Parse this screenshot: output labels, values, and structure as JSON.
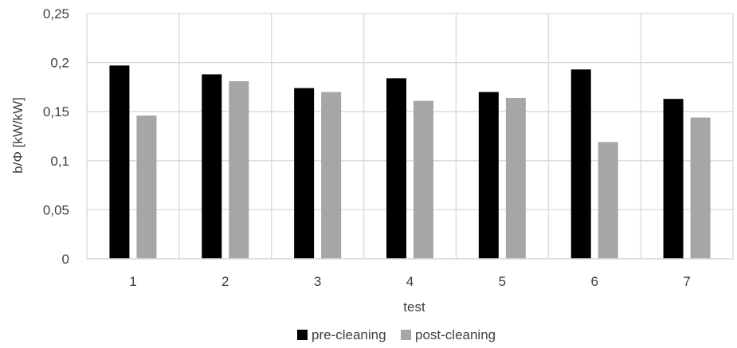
{
  "chart_data": {
    "type": "bar",
    "title": "",
    "xlabel": "test",
    "ylabel": "b/Φ [kW/kW]",
    "categories": [
      "1",
      "2",
      "3",
      "4",
      "5",
      "6",
      "7"
    ],
    "ylim": [
      0,
      0.25
    ],
    "yticks": [
      0,
      0.05,
      0.1,
      0.15,
      0.2,
      0.25
    ],
    "ytick_labels": [
      "0",
      "0,05",
      "0,1",
      "0,15",
      "0,2",
      "0,25"
    ],
    "grid": true,
    "legend_position": "bottom",
    "series": [
      {
        "name": "pre-cleaning",
        "color": "#000000",
        "values": [
          0.197,
          0.188,
          0.174,
          0.184,
          0.17,
          0.193,
          0.163
        ]
      },
      {
        "name": "post-cleaning",
        "color": "#a6a6a6",
        "values": [
          0.146,
          0.181,
          0.17,
          0.161,
          0.164,
          0.119,
          0.144
        ]
      }
    ]
  }
}
